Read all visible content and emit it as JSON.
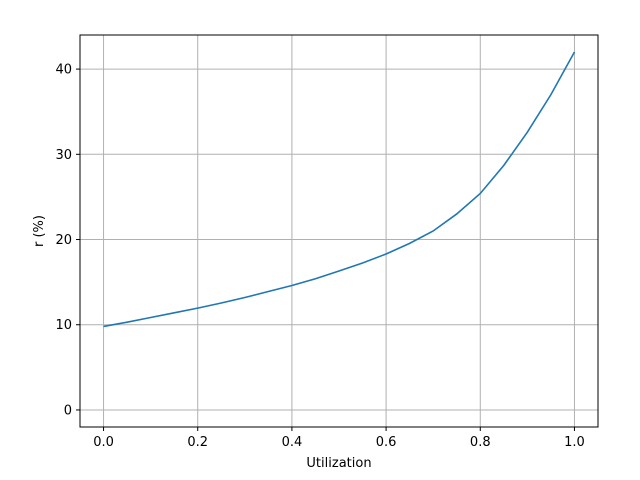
{
  "chart_data": {
    "type": "line",
    "title": "",
    "xlabel": "Utilization",
    "ylabel": "r (%)",
    "xlim": [
      -0.05,
      1.05
    ],
    "ylim": [
      -2.0,
      44.0
    ],
    "grid": true,
    "x_ticks": [
      0.0,
      0.2,
      0.4,
      0.6,
      0.8,
      1.0
    ],
    "x_tick_labels": [
      "0.0",
      "0.2",
      "0.4",
      "0.6",
      "0.8",
      "1.0"
    ],
    "y_ticks": [
      0,
      10,
      20,
      30,
      40
    ],
    "y_tick_labels": [
      "0",
      "10",
      "20",
      "30",
      "40"
    ],
    "series": [
      {
        "color": "#1f77b4",
        "x": [
          0.0,
          0.05,
          0.1,
          0.15,
          0.2,
          0.25,
          0.3,
          0.35,
          0.4,
          0.45,
          0.5,
          0.55,
          0.6,
          0.65,
          0.7,
          0.75,
          0.8,
          0.85,
          0.9,
          0.95,
          1.0
        ],
        "y": [
          9.8,
          10.3,
          10.85,
          11.4,
          11.95,
          12.55,
          13.2,
          13.9,
          14.6,
          15.4,
          16.3,
          17.25,
          18.3,
          19.55,
          21.0,
          23.0,
          25.4,
          28.7,
          32.6,
          37.0,
          42.0
        ]
      }
    ]
  }
}
